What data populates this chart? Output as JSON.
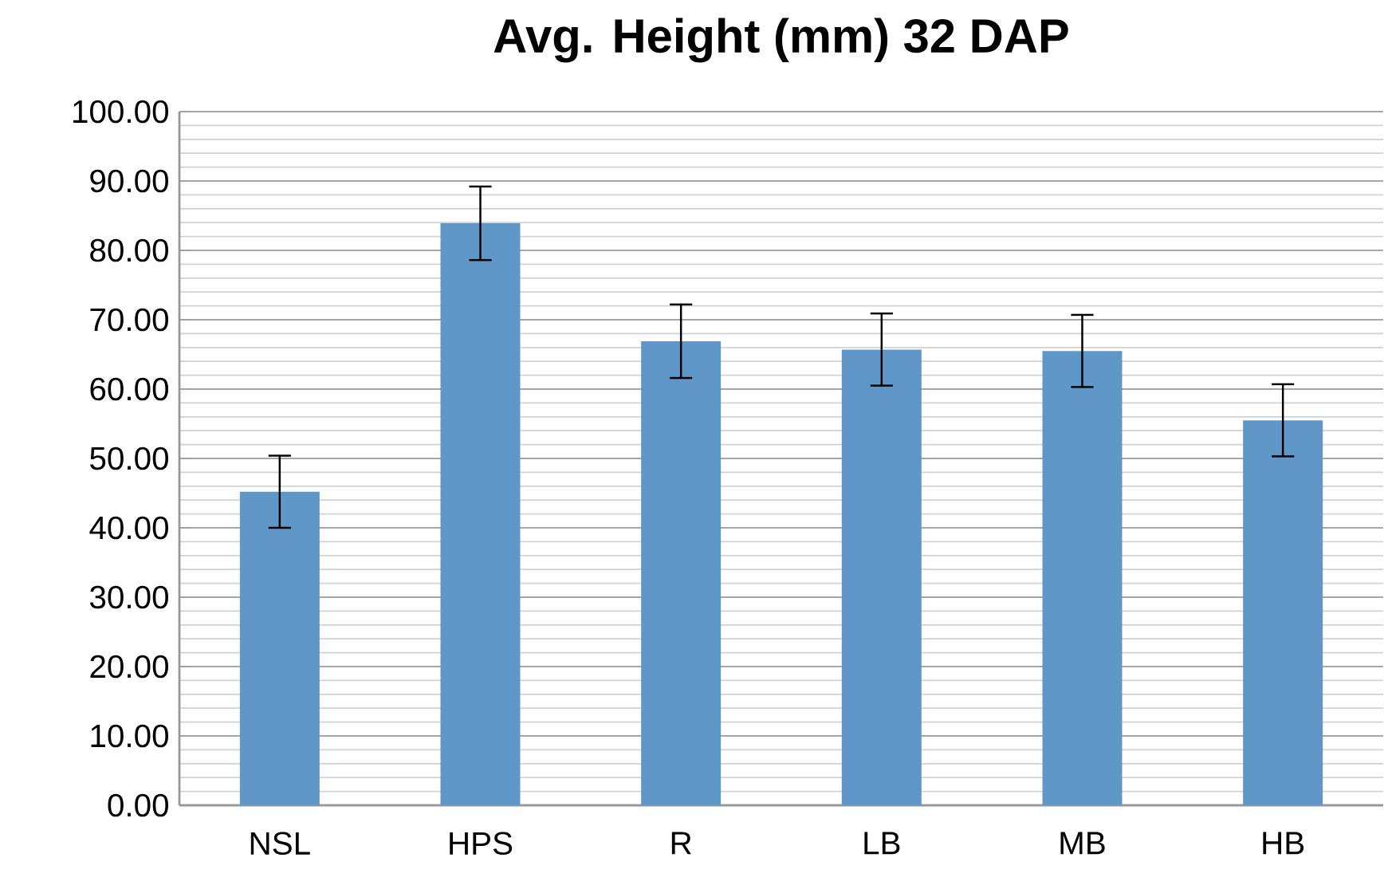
{
  "chart_data": {
    "type": "bar",
    "title": "Avg. Height (mm) 32 DAP",
    "categories": [
      "NSL",
      "HPS",
      "R",
      "LB",
      "MB",
      "HB"
    ],
    "values": [
      45.2,
      83.9,
      66.9,
      65.7,
      65.5,
      55.5
    ],
    "errors": [
      5.2,
      5.3,
      5.3,
      5.2,
      5.2,
      5.2
    ],
    "color": "#6097c9",
    "ylim": [
      0,
      100
    ],
    "yticks": [
      {
        "value": 0,
        "label": "0.00"
      },
      {
        "value": 10,
        "label": "10.00"
      },
      {
        "value": 20,
        "label": "20.00"
      },
      {
        "value": 30,
        "label": "30.00"
      },
      {
        "value": 40,
        "label": "40.00"
      },
      {
        "value": 50,
        "label": "50.00"
      },
      {
        "value": 60,
        "label": "60.00"
      },
      {
        "value": 70,
        "label": "70.00"
      },
      {
        "value": 80,
        "label": "80.00"
      },
      {
        "value": 90,
        "label": "90.00"
      },
      {
        "value": 100,
        "label": "100.00"
      }
    ],
    "grid": "y"
  }
}
